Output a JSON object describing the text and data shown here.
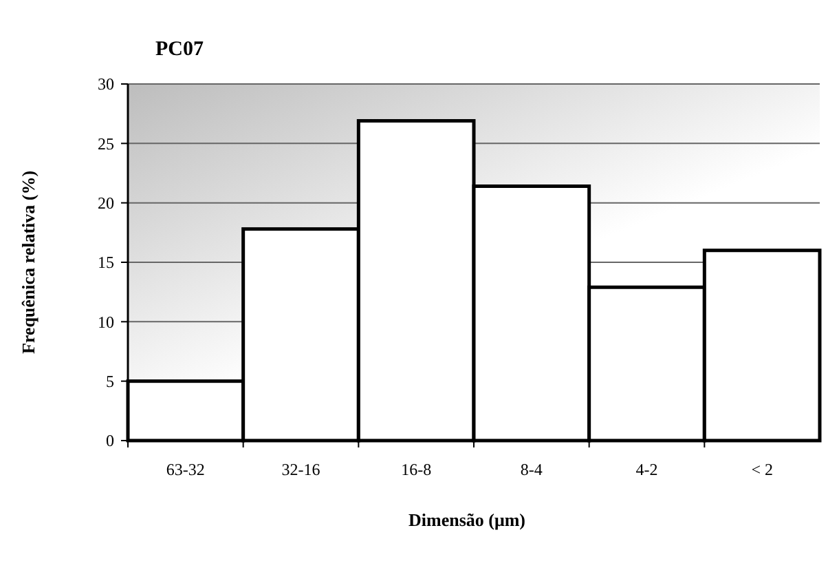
{
  "chart_data": {
    "type": "bar",
    "title": "PC07",
    "xlabel": "Dimensão (μm)",
    "ylabel": "Frequênica relativa (%)",
    "categories": [
      "63-32",
      "32-16",
      "16-8",
      "8-4",
      "4-2",
      "< 2"
    ],
    "values": [
      5,
      17.8,
      26.9,
      21.4,
      12.9,
      16.0
    ],
    "color": "#ffffff",
    "ylim": [
      0,
      30
    ],
    "yticks": [
      0,
      5,
      10,
      15,
      20,
      25,
      30
    ],
    "grid": "y"
  }
}
